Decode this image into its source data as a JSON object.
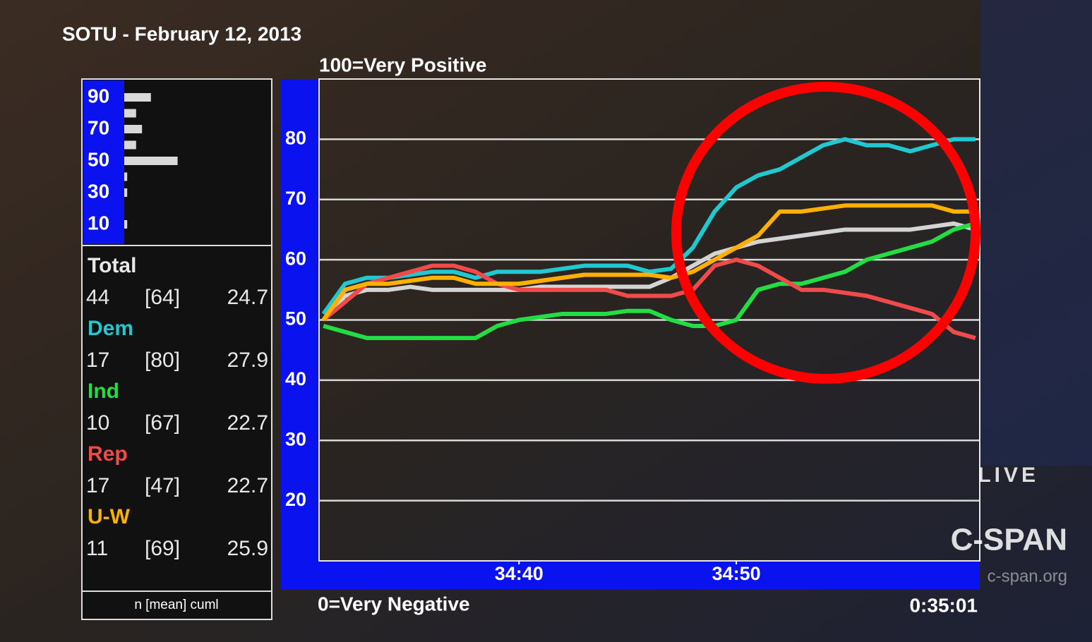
{
  "header": {
    "title": "SOTU - February 12, 2013",
    "clock": "0:35:01"
  },
  "broadcast": {
    "live": "LIVE",
    "network": "C-SPAN",
    "site": "c-span.org"
  },
  "chart_data": [
    {
      "type": "line",
      "top_label": "100=Very Positive",
      "bottom_label": "0=Very Negative",
      "stats_header": "n [mean] cuml",
      "x": [
        2071,
        2072,
        2073,
        2074,
        2075,
        2076,
        2077,
        2078,
        2079,
        2080,
        2081,
        2082,
        2083,
        2084,
        2085,
        2086,
        2087,
        2088,
        2089,
        2090,
        2091,
        2092,
        2093,
        2094,
        2095,
        2096,
        2097,
        2098,
        2099,
        2100,
        2101
      ],
      "xlim": [
        2070.8,
        2101.2
      ],
      "xticks": [
        {
          "value": 2080,
          "label": "34:40"
        },
        {
          "value": 2090,
          "label": "34:50"
        }
      ],
      "ylim": [
        10,
        90
      ],
      "yticks": [
        20,
        30,
        40,
        50,
        60,
        70,
        80
      ],
      "grid": true,
      "series": [
        {
          "name": "Total",
          "color": "#d4d4d4",
          "n": 44,
          "mean": "[64]",
          "cuml": 24.7,
          "values": [
            50,
            54,
            55,
            55,
            55.5,
            55,
            55,
            55,
            55,
            55,
            55.5,
            55.5,
            55.5,
            55.5,
            55.5,
            55.5,
            57,
            59,
            61,
            62,
            63,
            63.5,
            64,
            64.5,
            65,
            65,
            65,
            65,
            65.5,
            66,
            65
          ]
        },
        {
          "name": "Dem",
          "color": "#22c8d0",
          "n": 17,
          "mean": "[80]",
          "cuml": 27.9,
          "values": [
            51,
            56,
            57,
            57,
            57.5,
            58,
            58,
            57,
            58,
            58,
            58,
            58.5,
            59,
            59,
            59,
            58,
            58.5,
            62,
            68,
            72,
            74,
            75,
            77,
            79,
            80,
            79,
            79,
            78,
            79,
            80,
            80
          ]
        },
        {
          "name": "Ind",
          "color": "#22dd44",
          "n": 10,
          "mean": "[67]",
          "cuml": 22.7,
          "values": [
            49,
            48,
            47,
            47,
            47,
            47,
            47,
            47,
            49,
            50,
            50.5,
            51,
            51,
            51,
            51.5,
            51.5,
            50,
            49,
            49,
            50,
            55,
            56,
            56,
            57,
            58,
            60,
            61,
            62,
            63,
            65,
            66
          ]
        },
        {
          "name": "Rep",
          "color": "#f04a4a",
          "n": 17,
          "mean": "[47]",
          "cuml": 22.7,
          "values": [
            50,
            53,
            56,
            57,
            58,
            59,
            59,
            58,
            56,
            55,
            55,
            55,
            55,
            55,
            54,
            54,
            54,
            55,
            59,
            60,
            59,
            57,
            55,
            55,
            54.5,
            54,
            53,
            52,
            51,
            48,
            47
          ]
        },
        {
          "name": "U-W",
          "color": "#ffb000",
          "n": 11,
          "mean": "[69]",
          "cuml": 25.9,
          "values": [
            50,
            55,
            56,
            56,
            56.5,
            57,
            57,
            56,
            56,
            56,
            56.5,
            57,
            57.5,
            57.5,
            57.5,
            57.5,
            57,
            58,
            60,
            62,
            64,
            68,
            68,
            68.5,
            69,
            69,
            69,
            69,
            69,
            68,
            68
          ]
        }
      ]
    },
    {
      "type": "hbar",
      "y": [
        90,
        80,
        70,
        60,
        50,
        40,
        30,
        20,
        10
      ],
      "values": [
        9,
        4,
        6,
        4,
        18,
        1,
        1,
        0,
        1
      ],
      "ylim": [
        0,
        100
      ],
      "yticks": [
        10,
        30,
        50,
        70,
        90
      ],
      "color": "#d9d9d9"
    }
  ]
}
